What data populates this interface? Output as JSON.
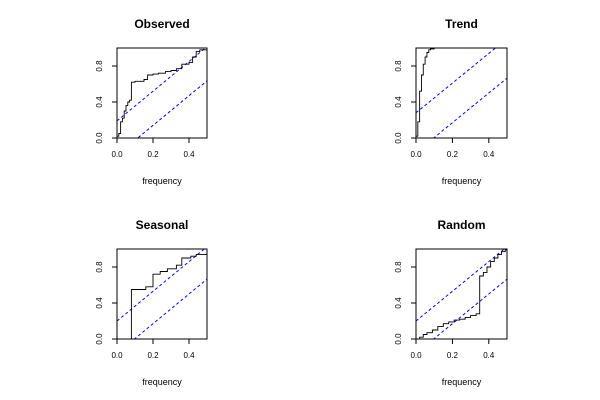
{
  "colors": {
    "band": "#0000ff",
    "series": "#000000",
    "background": "#ffffff"
  },
  "chart_data": [
    {
      "type": "line",
      "title": "Observed",
      "xlabel": "frequency",
      "ylabel": "",
      "xlim": [
        0,
        0.5
      ],
      "ylim": [
        0,
        1
      ],
      "xticks": [
        0.0,
        0.2,
        0.4
      ],
      "yticks": [
        0.0,
        0.4,
        0.8
      ],
      "xtick_labels": [
        "0.0",
        "0.2",
        "0.4"
      ],
      "ytick_labels": [
        "0.0",
        "0.4",
        "0.8"
      ],
      "grid": false,
      "series": [
        {
          "x": [
            0,
            0.01,
            0.02,
            0.03,
            0.04,
            0.05,
            0.06,
            0.07,
            0.08,
            0.1,
            0.15,
            0.17,
            0.2,
            0.23,
            0.27,
            0.3,
            0.33,
            0.36,
            0.4,
            0.42,
            0.44,
            0.46,
            0.5
          ],
          "y": [
            0.02,
            0.05,
            0.18,
            0.22,
            0.3,
            0.36,
            0.4,
            0.42,
            0.62,
            0.63,
            0.65,
            0.7,
            0.71,
            0.72,
            0.74,
            0.75,
            0.77,
            0.82,
            0.84,
            0.9,
            0.96,
            0.98,
            1.0
          ]
        }
      ],
      "bands": [
        {
          "intercept": 0.19,
          "slope": 1.65
        },
        {
          "intercept": -0.19,
          "slope": 1.65
        }
      ]
    },
    {
      "type": "line",
      "title": "Trend",
      "xlabel": "frequency",
      "ylabel": "",
      "xlim": [
        0,
        0.5
      ],
      "ylim": [
        0,
        1
      ],
      "xticks": [
        0.0,
        0.2,
        0.4
      ],
      "yticks": [
        0.0,
        0.4,
        0.8
      ],
      "xtick_labels": [
        "0.0",
        "0.2",
        "0.4"
      ],
      "ytick_labels": [
        "0.0",
        "0.4",
        "0.8"
      ],
      "grid": false,
      "series": [
        {
          "x": [
            0,
            0.01,
            0.02,
            0.03,
            0.04,
            0.05,
            0.06,
            0.07,
            0.08,
            0.1,
            0.5
          ],
          "y": [
            0.02,
            0.18,
            0.52,
            0.7,
            0.82,
            0.9,
            0.95,
            0.98,
            0.99,
            1.0,
            1.0
          ]
        }
      ],
      "bands": [
        {
          "intercept": 0.28,
          "slope": 1.65
        },
        {
          "intercept": -0.16,
          "slope": 1.65
        }
      ]
    },
    {
      "type": "line",
      "title": "Seasonal",
      "xlabel": "frequency",
      "ylabel": "",
      "xlim": [
        0,
        0.5
      ],
      "ylim": [
        0,
        1
      ],
      "xticks": [
        0.0,
        0.2,
        0.4
      ],
      "yticks": [
        0.0,
        0.4,
        0.8
      ],
      "xtick_labels": [
        "0.0",
        "0.2",
        "0.4"
      ],
      "ytick_labels": [
        "0.0",
        "0.4",
        "0.8"
      ],
      "grid": false,
      "series": [
        {
          "x": [
            0,
            0.08,
            0.16,
            0.2,
            0.24,
            0.28,
            0.33,
            0.36,
            0.41,
            0.44,
            0.5
          ],
          "y": [
            0.0,
            0.55,
            0.58,
            0.72,
            0.75,
            0.78,
            0.82,
            0.9,
            0.92,
            0.94,
            0.95
          ]
        }
      ],
      "bands": [
        {
          "intercept": 0.2,
          "slope": 1.65
        },
        {
          "intercept": -0.16,
          "slope": 1.65
        }
      ]
    },
    {
      "type": "line",
      "title": "Random",
      "xlabel": "frequency",
      "ylabel": "",
      "xlim": [
        0,
        0.5
      ],
      "ylim": [
        0,
        1
      ],
      "xticks": [
        0.0,
        0.2,
        0.4
      ],
      "yticks": [
        0.0,
        0.4,
        0.8
      ],
      "xtick_labels": [
        "0.0",
        "0.2",
        "0.4"
      ],
      "ytick_labels": [
        "0.0",
        "0.4",
        "0.8"
      ],
      "grid": false,
      "series": [
        {
          "x": [
            0,
            0.02,
            0.04,
            0.06,
            0.09,
            0.12,
            0.15,
            0.18,
            0.21,
            0.24,
            0.27,
            0.3,
            0.33,
            0.35,
            0.37,
            0.39,
            0.41,
            0.43,
            0.45,
            0.47,
            0.49,
            0.5
          ],
          "y": [
            0.0,
            0.02,
            0.05,
            0.07,
            0.1,
            0.14,
            0.17,
            0.19,
            0.21,
            0.22,
            0.24,
            0.26,
            0.28,
            0.7,
            0.74,
            0.8,
            0.86,
            0.9,
            0.94,
            0.97,
            0.99,
            1.0
          ]
        }
      ],
      "bands": [
        {
          "intercept": 0.2,
          "slope": 1.65
        },
        {
          "intercept": -0.16,
          "slope": 1.65
        }
      ]
    }
  ]
}
